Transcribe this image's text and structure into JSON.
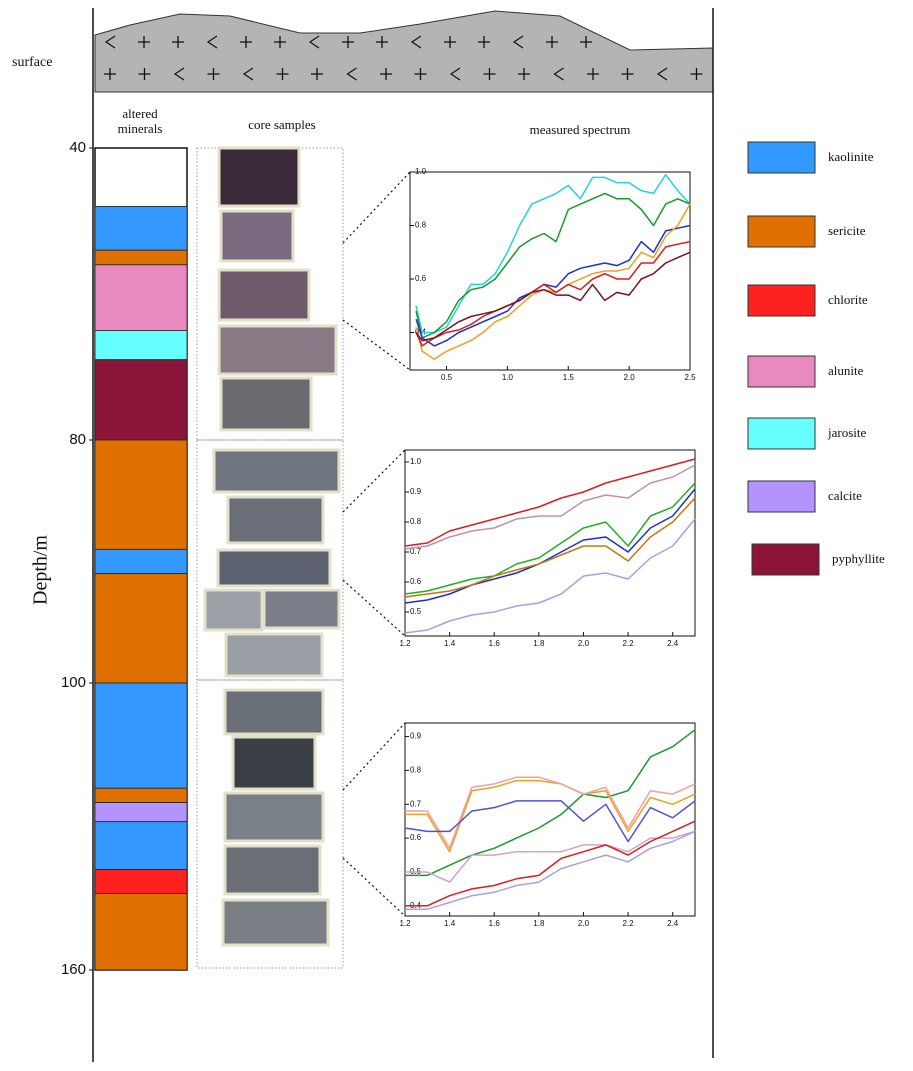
{
  "surface_label": "surface",
  "headers": {
    "altered_minerals": "altered minerals",
    "core_samples": "core samples",
    "measured_spectrum": "measured spectrum"
  },
  "depth_axis": {
    "label": "Depth/m",
    "ylim": [
      40,
      160
    ],
    "ticks": [
      40,
      80,
      100,
      160
    ]
  },
  "legend": [
    {
      "name": "kaolinite",
      "color": "#3399ff"
    },
    {
      "name": "sericite",
      "color": "#e07000"
    },
    {
      "name": "chlorite",
      "color": "#ff2020"
    },
    {
      "name": "alunite",
      "color": "#e88ac0"
    },
    {
      "name": "jarosite",
      "color": "#66ffff"
    },
    {
      "name": "calcite",
      "color": "#b394ff"
    },
    {
      "name": "pyphyllite",
      "color": "#8b1538"
    }
  ],
  "layers": [
    {
      "mineral": "kaolinite",
      "top": 48,
      "bottom": 54
    },
    {
      "mineral": "sericite",
      "top": 54,
      "bottom": 56
    },
    {
      "mineral": "alunite",
      "top": 56,
      "bottom": 65
    },
    {
      "mineral": "jarosite",
      "top": 65,
      "bottom": 69
    },
    {
      "mineral": "pyphyllite",
      "top": 69,
      "bottom": 80
    },
    {
      "mineral": "sericite",
      "top": 80,
      "bottom": 89
    },
    {
      "mineral": "kaolinite",
      "top": 89,
      "bottom": 91
    },
    {
      "mineral": "sericite",
      "top": 91,
      "bottom": 100
    },
    {
      "mineral": "kaolinite",
      "top": 100,
      "bottom": 122
    },
    {
      "mineral": "sericite",
      "top": 122,
      "bottom": 125
    },
    {
      "mineral": "calcite",
      "top": 125,
      "bottom": 129
    },
    {
      "mineral": "kaolinite",
      "top": 129,
      "bottom": 139
    },
    {
      "mineral": "chlorite",
      "top": 139,
      "bottom": 144
    },
    {
      "mineral": "sericite",
      "top": 144,
      "bottom": 160
    }
  ],
  "spectra": [
    {
      "xlim": [
        0.2,
        2.5
      ],
      "ylim": [
        0.26,
        1.0
      ],
      "xticks": [
        0.5,
        {
          "value": 1,
          "label": "1.0"
        },
        1.5,
        {
          "value": 2,
          "label": "2.0"
        },
        2.5
      ],
      "yticks": [
        0.4,
        0.6,
        0.8,
        {
          "value": 1,
          "label": "1.0"
        }
      ],
      "x": [
        0.25,
        0.3,
        0.4,
        0.5,
        0.6,
        0.7,
        0.8,
        0.9,
        1.0,
        1.1,
        1.2,
        1.3,
        1.4,
        1.5,
        1.6,
        1.7,
        1.8,
        1.9,
        2.0,
        2.1,
        2.2,
        2.3,
        2.4,
        2.5
      ],
      "series": [
        {
          "color": "#22d3dd",
          "values": [
            0.5,
            0.4,
            0.4,
            0.42,
            0.5,
            0.58,
            0.58,
            0.62,
            0.7,
            0.8,
            0.88,
            0.9,
            0.92,
            0.95,
            0.9,
            0.98,
            0.98,
            0.96,
            0.96,
            0.93,
            0.92,
            0.99,
            0.93,
            0.88
          ]
        },
        {
          "color": "#1a9a2a",
          "values": [
            0.48,
            0.38,
            0.4,
            0.44,
            0.52,
            0.56,
            0.57,
            0.6,
            0.66,
            0.72,
            0.75,
            0.77,
            0.74,
            0.86,
            0.88,
            0.9,
            0.92,
            0.9,
            0.9,
            0.86,
            0.8,
            0.88,
            0.9,
            0.88
          ]
        },
        {
          "color": "#1c2fd0",
          "values": [
            0.45,
            0.38,
            0.35,
            0.37,
            0.4,
            0.42,
            0.44,
            0.46,
            0.48,
            0.53,
            0.55,
            0.58,
            0.57,
            0.62,
            0.64,
            0.65,
            0.66,
            0.65,
            0.67,
            0.74,
            0.7,
            0.78,
            0.79,
            0.8
          ]
        },
        {
          "color": "#f0a020",
          "values": [
            0.42,
            0.33,
            0.3,
            0.33,
            0.35,
            0.37,
            0.4,
            0.44,
            0.46,
            0.5,
            0.54,
            0.56,
            0.55,
            0.58,
            0.6,
            0.62,
            0.63,
            0.63,
            0.64,
            0.7,
            0.68,
            0.76,
            0.8,
            0.88
          ]
        },
        {
          "color": "#d81e1e",
          "values": [
            0.4,
            0.35,
            0.38,
            0.4,
            0.41,
            0.43,
            0.46,
            0.48,
            0.5,
            0.52,
            0.55,
            0.58,
            0.55,
            0.58,
            0.56,
            0.6,
            0.62,
            0.6,
            0.6,
            0.66,
            0.66,
            0.72,
            0.73,
            0.74
          ]
        },
        {
          "color": "#7a1020",
          "values": [
            0.4,
            0.37,
            0.38,
            0.41,
            0.44,
            0.46,
            0.47,
            0.48,
            0.5,
            0.52,
            0.55,
            0.56,
            0.54,
            0.54,
            0.52,
            0.58,
            0.52,
            0.55,
            0.54,
            0.6,
            0.62,
            0.66,
            0.68,
            0.7
          ]
        }
      ]
    },
    {
      "xlim": [
        1.2,
        2.5
      ],
      "ylim": [
        0.42,
        1.04
      ],
      "xticks": [
        1.2,
        1.4,
        1.6,
        1.8,
        {
          "value": 2,
          "label": "2.0"
        },
        2.2,
        2.4
      ],
      "yticks": [
        0.5,
        0.6,
        0.7,
        0.8,
        0.9,
        {
          "value": 1,
          "label": "1.0"
        }
      ],
      "x": [
        1.2,
        1.3,
        1.4,
        1.5,
        1.6,
        1.7,
        1.8,
        1.9,
        2.0,
        2.1,
        2.2,
        2.3,
        2.4,
        2.5
      ],
      "series": [
        {
          "color": "#d81e1e",
          "values": [
            0.72,
            0.73,
            0.77,
            0.79,
            0.81,
            0.83,
            0.85,
            0.88,
            0.9,
            0.93,
            0.95,
            0.97,
            0.99,
            1.01
          ]
        },
        {
          "color": "#c890a8",
          "values": [
            0.71,
            0.72,
            0.75,
            0.77,
            0.78,
            0.81,
            0.82,
            0.82,
            0.87,
            0.89,
            0.88,
            0.93,
            0.95,
            0.99
          ]
        },
        {
          "color": "#20b020",
          "values": [
            0.56,
            0.57,
            0.59,
            0.61,
            0.62,
            0.66,
            0.68,
            0.73,
            0.78,
            0.8,
            0.72,
            0.82,
            0.85,
            0.93
          ]
        },
        {
          "color": "#1c2fd0",
          "values": [
            0.53,
            0.54,
            0.56,
            0.59,
            0.61,
            0.63,
            0.66,
            0.7,
            0.74,
            0.75,
            0.7,
            0.78,
            0.82,
            0.91
          ]
        },
        {
          "color": "#c07810",
          "values": [
            0.55,
            0.56,
            0.57,
            0.59,
            0.62,
            0.64,
            0.66,
            0.69,
            0.72,
            0.72,
            0.67,
            0.75,
            0.8,
            0.88
          ]
        },
        {
          "color": "#a8a0e8",
          "values": [
            0.43,
            0.44,
            0.47,
            0.49,
            0.5,
            0.52,
            0.53,
            0.56,
            0.62,
            0.63,
            0.61,
            0.68,
            0.72,
            0.81
          ]
        }
      ]
    },
    {
      "xlim": [
        1.2,
        2.5
      ],
      "ylim": [
        0.37,
        0.94
      ],
      "xticks": [
        1.2,
        1.4,
        1.6,
        1.8,
        {
          "value": 2,
          "label": "2.0"
        },
        2.2,
        2.4
      ],
      "yticks": [
        0.4,
        0.5,
        0.6,
        0.7,
        0.8,
        0.9
      ],
      "x": [
        1.2,
        1.3,
        1.4,
        1.5,
        1.6,
        1.7,
        1.8,
        1.9,
        2.0,
        2.1,
        2.2,
        2.3,
        2.4,
        2.5
      ],
      "series": [
        {
          "color": "#1a9a2a",
          "values": [
            0.49,
            0.49,
            0.52,
            0.55,
            0.57,
            0.6,
            0.63,
            0.67,
            0.73,
            0.72,
            0.74,
            0.84,
            0.87,
            0.92
          ]
        },
        {
          "color": "#f0a020",
          "values": [
            0.67,
            0.67,
            0.56,
            0.74,
            0.75,
            0.77,
            0.77,
            0.76,
            0.73,
            0.74,
            0.62,
            0.72,
            0.7,
            0.73
          ]
        },
        {
          "color": "#f0a0a0",
          "values": [
            0.68,
            0.68,
            0.57,
            0.75,
            0.76,
            0.78,
            0.78,
            0.76,
            0.73,
            0.75,
            0.63,
            0.74,
            0.73,
            0.76
          ]
        },
        {
          "color": "#5050e0",
          "values": [
            0.63,
            0.62,
            0.62,
            0.68,
            0.69,
            0.71,
            0.71,
            0.71,
            0.65,
            0.7,
            0.59,
            0.69,
            0.66,
            0.71
          ]
        },
        {
          "color": "#d8a0c8",
          "values": [
            0.5,
            0.5,
            0.47,
            0.55,
            0.55,
            0.56,
            0.56,
            0.56,
            0.58,
            0.58,
            0.56,
            0.6,
            0.6,
            0.62
          ]
        },
        {
          "color": "#d81e1e",
          "values": [
            0.4,
            0.4,
            0.43,
            0.45,
            0.46,
            0.48,
            0.49,
            0.54,
            0.56,
            0.58,
            0.55,
            0.59,
            0.62,
            0.65
          ]
        },
        {
          "color": "#a8a0e8",
          "values": [
            0.39,
            0.39,
            0.41,
            0.43,
            0.44,
            0.46,
            0.47,
            0.51,
            0.53,
            0.55,
            0.53,
            0.57,
            0.59,
            0.62
          ]
        }
      ]
    }
  ]
}
